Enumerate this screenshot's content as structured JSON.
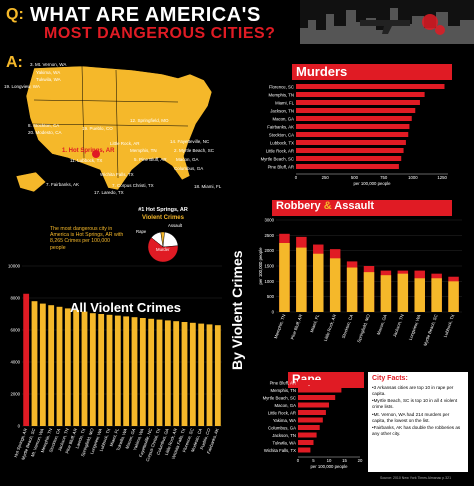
{
  "header": {
    "q_label": "Q:",
    "title_line1": "WHAT ARE AMERICA'S",
    "title_line2": "MOST DANGEROUS CITIES?"
  },
  "answer_label": "A:",
  "map": {
    "cities": [
      "3. Mt. Vernon, WA",
      "Yakima, WA",
      "Tukwila, WA",
      "19. Longview, WA",
      "8. Stockton, CA",
      "20. Modesto, CA",
      "19. Pueblo, CO",
      "12. Springfield, MO",
      "14. Fayetteville, NC",
      "2. Myrtle Beach, SC",
      "Memphis, TN",
      "Little Rock, AR",
      "1. Hot Springs, AR",
      "11. Lubbock, TX",
      "5. Pine Bluff, AR",
      "Macon, GA",
      "7. Fairbanks, AK",
      "7. Corpus Christi, TX",
      "18. Miami, FL",
      "17. Laredo, TX",
      "Columbus, GA",
      "Wichita Falls, TX"
    ],
    "top_city": "#1 Hot Springs, AR",
    "sentence": "The most dangerous city in America is Hot Springs, AR with 8,265 Crimes per 100,000 people"
  },
  "violent_pie": {
    "title": "Violent Crimes",
    "labels": [
      "Robbery",
      "Rape",
      "Assault",
      "Murder"
    ],
    "values": [
      12,
      4,
      22,
      62
    ]
  },
  "side_label": "By Violent Crimes",
  "murders": {
    "title": "Murders",
    "xlabel": "per 100,000 people",
    "ticks": [
      "0",
      "250",
      "500",
      "750",
      "1000",
      "1250"
    ]
  },
  "robbery": {
    "title_a": "Robbery",
    "amp": "&",
    "title_b": "Assault",
    "ylabel": "per 100,000 people",
    "ticks": [
      "0",
      "500",
      "1000",
      "1500",
      "2000",
      "2500",
      "3000"
    ]
  },
  "all_violent": {
    "title": "All Violent Crimes",
    "ticks": [
      "0",
      "2000",
      "4000",
      "6000",
      "8000",
      "10000"
    ]
  },
  "rape": {
    "title": "Rape",
    "xlabel": "per 100,000 people",
    "ticks": [
      "0",
      "5",
      "10",
      "15",
      "20"
    ]
  },
  "facts": {
    "title": "City Facts:",
    "items": [
      "•3 Arkansas cities are top 10 in rape per capita.",
      "•Myrtle Beach, SC is top 10 in all 4 violent crime lists.",
      "•Mt. Vernon, WA had 214 murders per capita, the lowest on the list.",
      "•Fairbanks, AK has double the robberies as any other city."
    ]
  },
  "source": "Source: 2010 New York Times Almanac p.321",
  "colors": {
    "red": "#e01b24",
    "yellow": "#f5b82a",
    "black": "#000000"
  },
  "chart_data": [
    {
      "type": "bar",
      "title": "Murders",
      "xlabel": "per 100,000 people",
      "xlim": [
        0,
        1300
      ],
      "categories": [
        "Florence, SC",
        "Memphis, TN",
        "Miami, FL",
        "Jackson, TN",
        "Macon, GA",
        "Fairbanks, AK",
        "Stockton, CA",
        "Lubbock, TX",
        "Little Rock, AR",
        "Myrtle Beach, SC",
        "Pine Bluff, AR"
      ],
      "values": [
        1270,
        1100,
        1060,
        1020,
        990,
        970,
        960,
        940,
        920,
        900,
        880
      ]
    },
    {
      "type": "bar",
      "title": "Robbery & Assault",
      "ylabel": "per 100,000 people",
      "ylim": [
        0,
        3000
      ],
      "categories": [
        "Memphis, TN",
        "Pine Bluff, AR",
        "Miami, FL",
        "Little Rock, AR",
        "Stockton, CA",
        "Springfield, MO",
        "Macon, GA",
        "Jackson, TN",
        "Longview, WA",
        "Myrtle Beach, SC",
        "Lubbock, TX"
      ],
      "series": [
        {
          "name": "Robbery",
          "values": [
            2550,
            2450,
            2200,
            2050,
            1650,
            1500,
            1350,
            1350,
            1350,
            1250,
            1150
          ]
        },
        {
          "name": "Assault",
          "values": [
            2250,
            2100,
            1900,
            1750,
            1450,
            1300,
            1200,
            1250,
            1100,
            1100,
            1000
          ]
        }
      ]
    },
    {
      "type": "bar",
      "title": "All Violent Crimes",
      "ylim": [
        0,
        10000
      ],
      "categories": [
        "Hot Springs, AR",
        "Myrtle Beach, SC",
        "Mt. Vernon, WA",
        "Memphis, TN",
        "Stockton, CA",
        "Jackson, TN",
        "Pine Bluff, AR",
        "Laredo, TX",
        "Springfield, MO",
        "Longview, WA",
        "Lubbock, TX",
        "Miami, FL",
        "Tukwila, WA",
        "Macon, GA",
        "Yakima, WA",
        "Fayetteville, NC",
        "Corpus Christi, TX",
        "Columbus, GA",
        "Little Rock, AR",
        "Wichita Falls, TX",
        "Florence, SC",
        "Modesto, CA",
        "Pueblo, CO",
        "Fairbanks, AK"
      ],
      "values": [
        8265,
        7800,
        7650,
        7550,
        7450,
        7350,
        7250,
        7150,
        7050,
        7000,
        6950,
        6900,
        6850,
        6800,
        6750,
        6700,
        6650,
        6600,
        6550,
        6500,
        6450,
        6400,
        6350,
        6300
      ]
    },
    {
      "type": "bar",
      "title": "Rape",
      "xlabel": "per 100,000 people",
      "xlim": [
        0,
        20
      ],
      "categories": [
        "Pine Bluff, AR",
        "Memphis, TN",
        "Myrtle Beach, SC",
        "Macon, GA",
        "Little Rock, AR",
        "Yakima, WA",
        "Columbus, GA",
        "Jackson, TN",
        "Tukwila, WA",
        "Wichita Falls, TX"
      ],
      "values": [
        19,
        14,
        12,
        10,
        9,
        8,
        7,
        6,
        5,
        4
      ]
    }
  ]
}
